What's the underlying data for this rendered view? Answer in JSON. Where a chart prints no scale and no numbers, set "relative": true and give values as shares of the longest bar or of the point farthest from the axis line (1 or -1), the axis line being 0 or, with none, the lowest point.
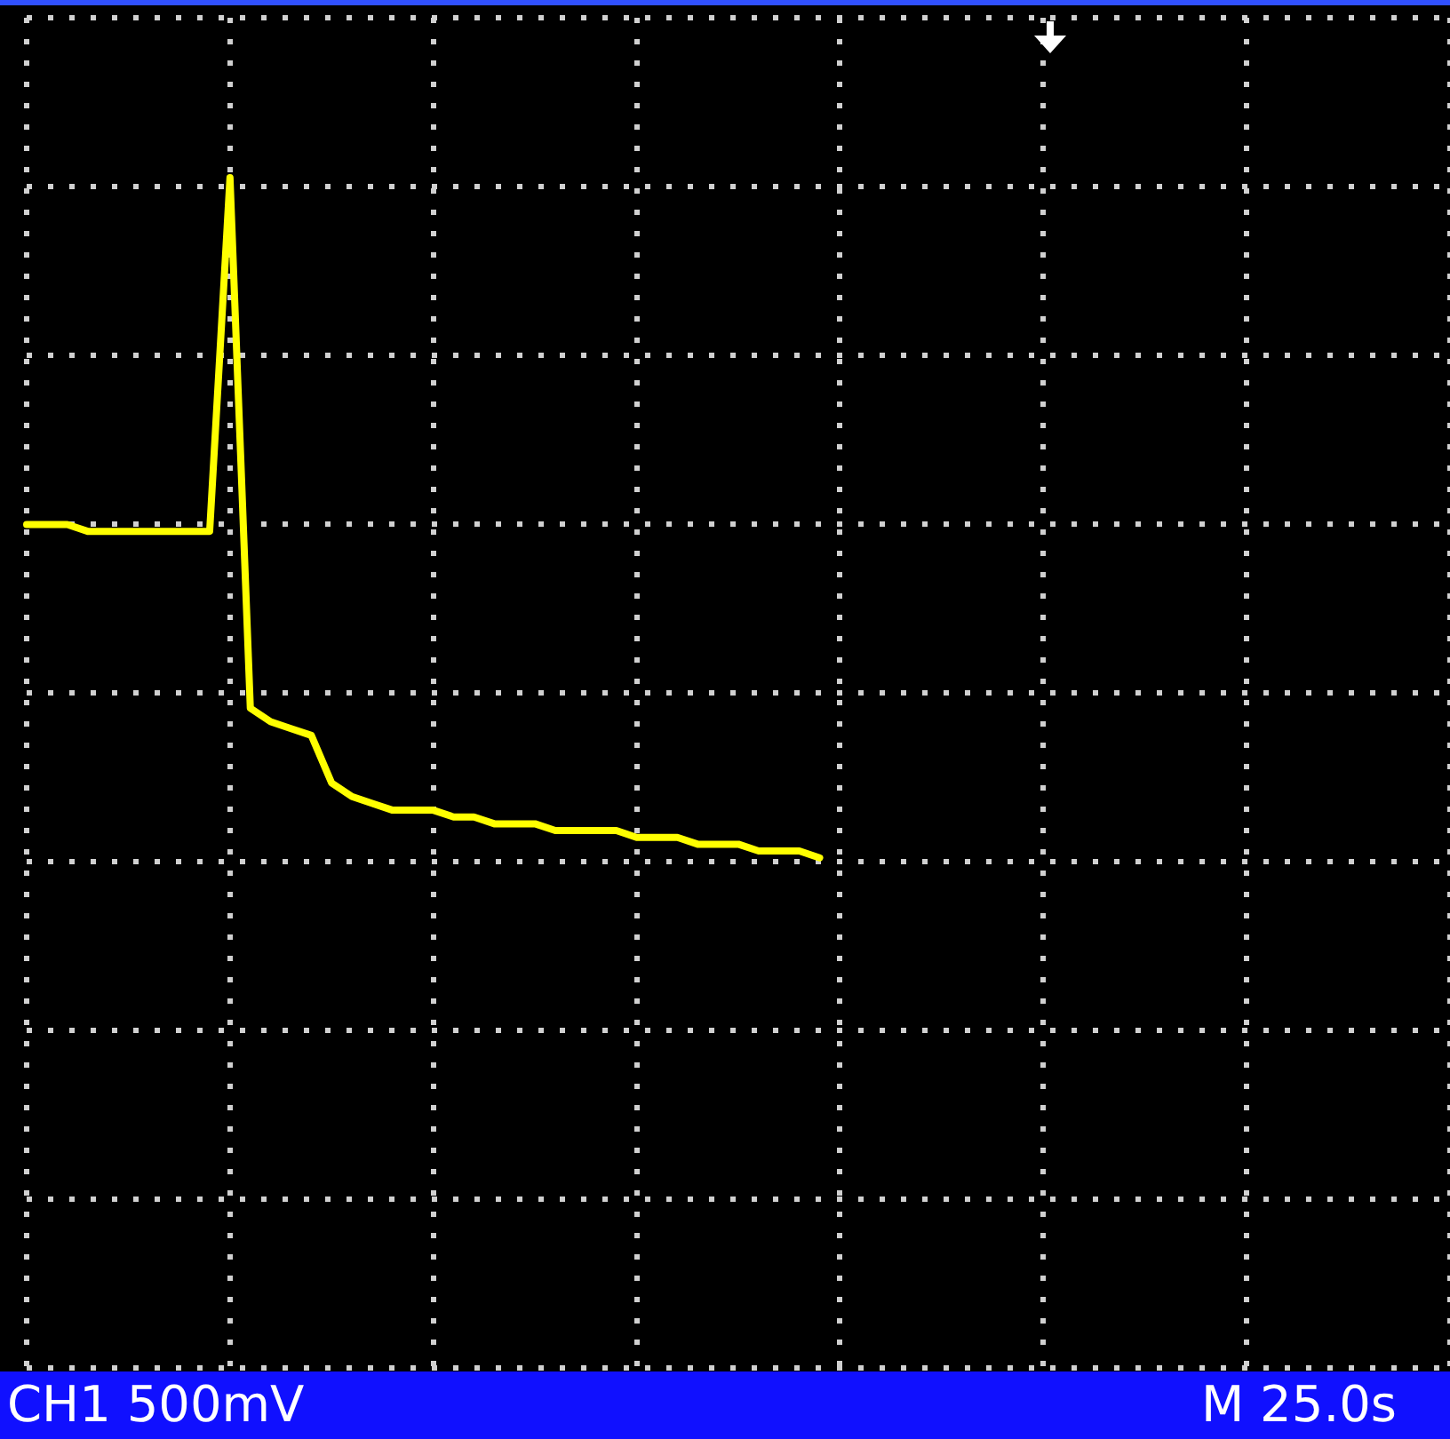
{
  "chart_data": {
    "type": "line",
    "relative": true,
    "grid": true,
    "legend": false,
    "marker": "none",
    "line_style": "solid",
    "tick_labels": false,
    "categories": [
      null,
      null,
      null,
      null,
      null,
      null,
      null,
      null,
      null,
      null,
      null,
      null,
      null,
      null,
      null,
      null,
      null,
      null,
      null,
      null,
      null,
      null,
      null,
      null,
      null,
      null,
      null,
      null,
      null,
      null,
      null,
      null,
      null,
      null,
      null,
      null,
      null,
      null,
      null,
      null,
      null,
      null,
      null,
      null,
      null,
      null,
      null,
      null,
      null,
      null,
      null,
      null,
      null,
      null,
      null,
      null,
      null,
      null,
      null,
      null,
      null,
      null,
      null,
      null,
      null,
      null,
      null,
      null,
      null,
      null,
      null
    ],
    "series": [
      {
        "color": "#ffff00",
        "values": [
          0.49,
          0.49,
          0.49,
          0.48,
          0.48,
          0.48,
          0.48,
          0.48,
          0.48,
          0.48,
          1,
          0.22,
          0.2,
          0.19,
          0.18,
          0.11,
          0.09,
          0.08,
          0.07,
          0.07,
          0.07,
          0.06,
          0.06,
          0.05,
          0.05,
          0.05,
          0.04,
          0.04,
          0.04,
          0.04,
          0.03,
          0.03,
          0.03,
          0.02,
          0.02,
          0.02,
          0.01,
          0.01,
          0.01,
          0,
          null,
          null,
          null,
          null,
          null,
          null,
          null,
          null,
          null,
          null,
          null,
          null,
          null,
          null,
          null,
          null,
          null,
          null,
          null,
          null,
          null,
          null,
          null,
          null,
          null,
          null,
          null,
          null,
          null,
          null,
          null
        ]
      }
    ],
    "annotations": [
      "CH1 500mV",
      "M 25.0s"
    ]
  }
}
